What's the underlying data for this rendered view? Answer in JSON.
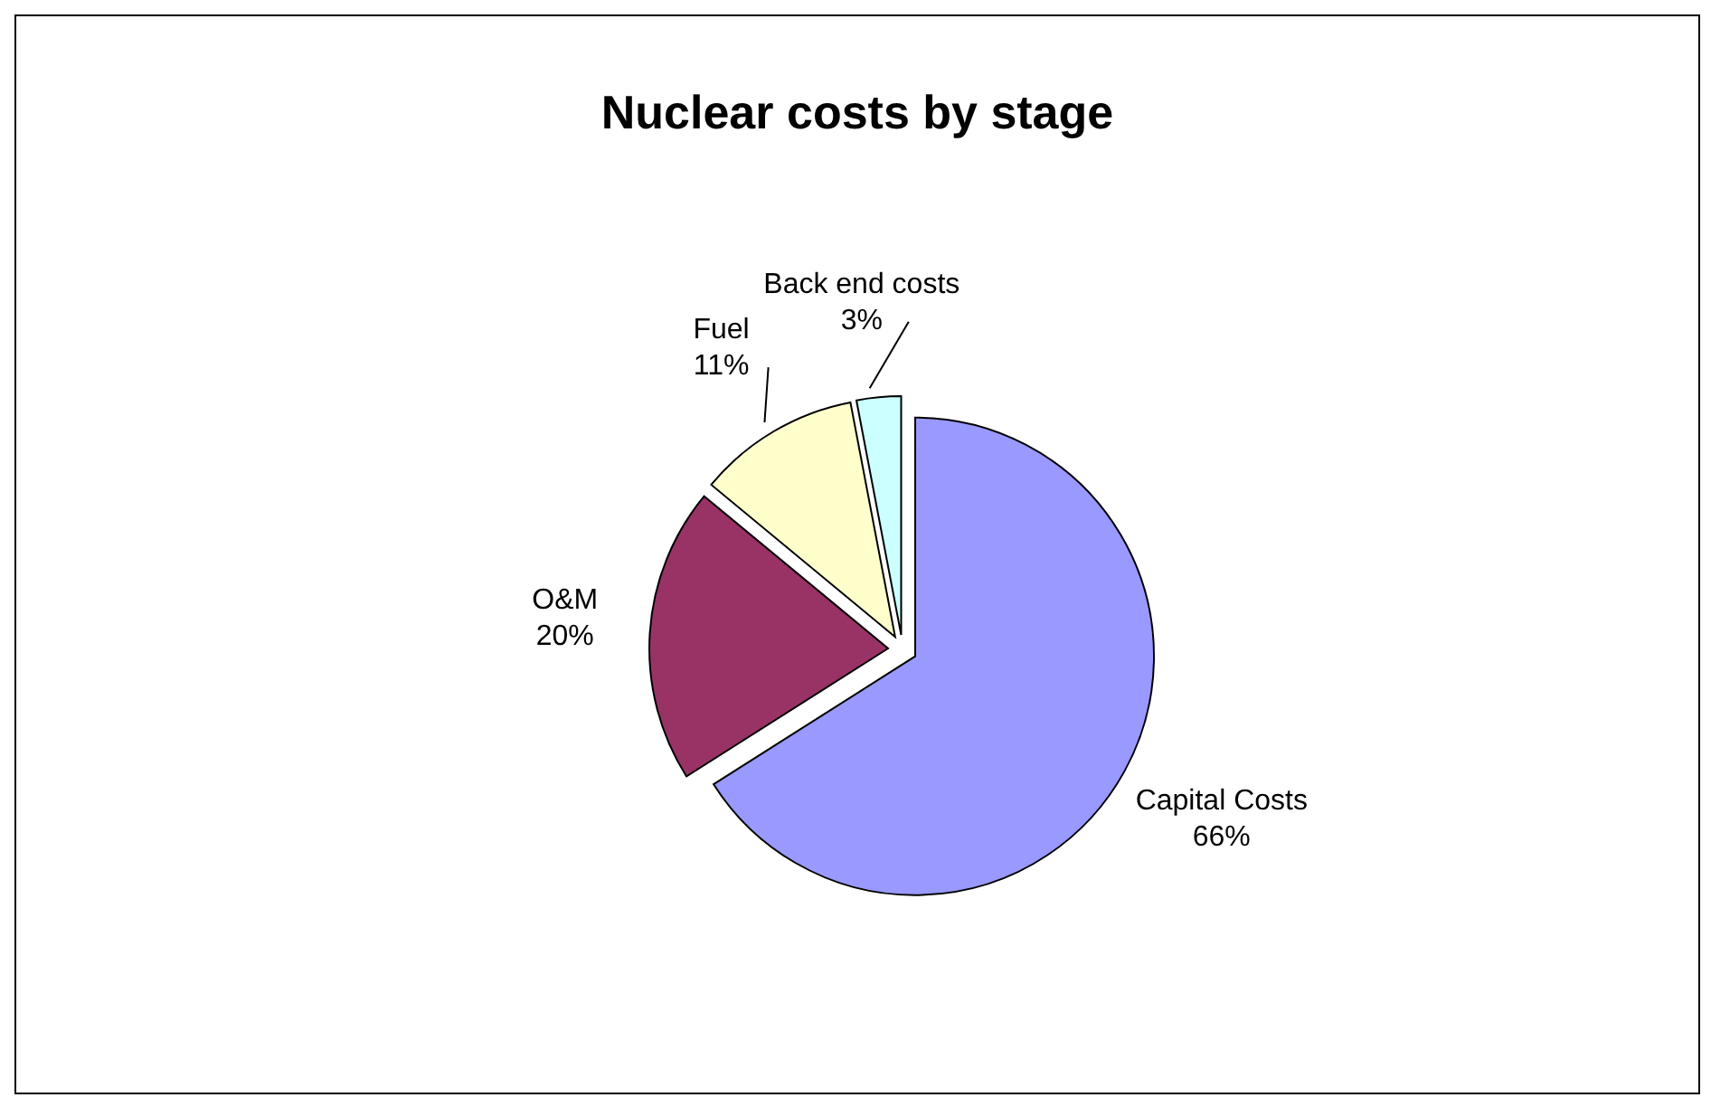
{
  "chart_data": {
    "type": "pie",
    "title": "Nuclear costs by stage",
    "categories": [
      "Capital Costs",
      "O&M",
      "Fuel",
      "Back end costs"
    ],
    "values": [
      66,
      20,
      11,
      3
    ],
    "value_labels": [
      "66%",
      "20%",
      "11%",
      "3%"
    ],
    "colors": [
      "#9999ff",
      "#993366",
      "#ffffcc",
      "#ccffff"
    ],
    "data_labels": true
  }
}
